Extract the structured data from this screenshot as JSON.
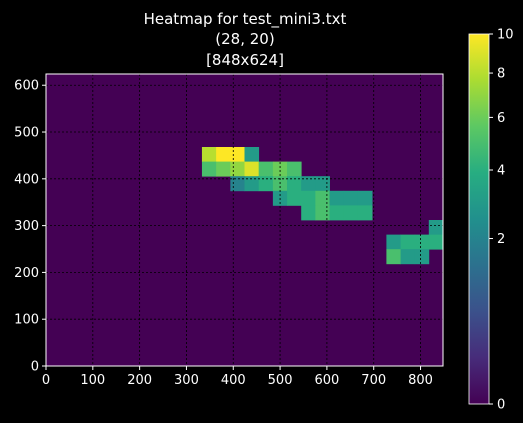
{
  "chart_data": {
    "type": "heatmap",
    "title_lines": [
      "Heatmap for test_mini3.txt",
      "(28, 20)",
      "[848x624]"
    ],
    "xlabel": "",
    "ylabel": "",
    "xlim": [
      0,
      848
    ],
    "ylim": [
      0,
      624
    ],
    "x_ticks": [
      0,
      100,
      200,
      300,
      400,
      500,
      600,
      700,
      800
    ],
    "y_ticks": [
      0,
      100,
      200,
      300,
      400,
      500,
      600
    ],
    "grid": true,
    "grid_x": [
      100,
      200,
      300,
      400,
      500,
      600,
      700,
      800
    ],
    "grid_y": [
      100,
      200,
      300,
      400,
      500,
      600
    ],
    "colorscale": "viridis",
    "colorbar": {
      "range": [
        0,
        10
      ],
      "scale": "sqrt",
      "ticks": [
        0,
        2,
        4,
        6,
        8,
        10
      ]
    },
    "grid_shape": {
      "cols": 28,
      "rows": 20
    },
    "cell_size": {
      "width": 30.2857,
      "height": 31.2
    },
    "nonzero_cells": [
      {
        "x0": 333.1,
        "y0": 436.8,
        "x1": 363.4,
        "y1": 468.0,
        "value": 8.0
      },
      {
        "x0": 363.4,
        "y0": 436.8,
        "x1": 393.7,
        "y1": 468.0,
        "value": 10.0
      },
      {
        "x0": 393.7,
        "y0": 436.8,
        "x1": 424.0,
        "y1": 468.0,
        "value": 10.0
      },
      {
        "x0": 424.0,
        "y0": 436.8,
        "x1": 454.3,
        "y1": 468.0,
        "value": 3.0
      },
      {
        "x0": 333.1,
        "y0": 405.6,
        "x1": 363.4,
        "y1": 436.8,
        "value": 5.0
      },
      {
        "x0": 363.4,
        "y0": 405.6,
        "x1": 393.7,
        "y1": 436.8,
        "value": 6.0
      },
      {
        "x0": 393.7,
        "y0": 405.6,
        "x1": 424.0,
        "y1": 436.8,
        "value": 7.0
      },
      {
        "x0": 424.0,
        "y0": 405.6,
        "x1": 454.3,
        "y1": 436.8,
        "value": 9.0
      },
      {
        "x0": 454.3,
        "y0": 405.6,
        "x1": 484.6,
        "y1": 436.8,
        "value": 5.0
      },
      {
        "x0": 484.6,
        "y0": 405.6,
        "x1": 514.9,
        "y1": 436.8,
        "value": 6.0
      },
      {
        "x0": 514.9,
        "y0": 405.6,
        "x1": 545.1,
        "y1": 436.8,
        "value": 5.0
      },
      {
        "x0": 393.7,
        "y0": 374.4,
        "x1": 424.0,
        "y1": 405.6,
        "value": 2.0
      },
      {
        "x0": 424.0,
        "y0": 374.4,
        "x1": 454.3,
        "y1": 405.6,
        "value": 3.0
      },
      {
        "x0": 454.3,
        "y0": 374.4,
        "x1": 484.6,
        "y1": 405.6,
        "value": 4.0
      },
      {
        "x0": 484.6,
        "y0": 374.4,
        "x1": 514.9,
        "y1": 405.6,
        "value": 5.0
      },
      {
        "x0": 514.9,
        "y0": 374.4,
        "x1": 545.1,
        "y1": 405.6,
        "value": 4.0
      },
      {
        "x0": 545.1,
        "y0": 374.4,
        "x1": 575.4,
        "y1": 405.6,
        "value": 3.0
      },
      {
        "x0": 575.4,
        "y0": 374.4,
        "x1": 605.7,
        "y1": 405.6,
        "value": 3.0
      },
      {
        "x0": 484.6,
        "y0": 343.2,
        "x1": 514.9,
        "y1": 374.4,
        "value": 3.0
      },
      {
        "x0": 514.9,
        "y0": 343.2,
        "x1": 545.1,
        "y1": 374.4,
        "value": 4.0
      },
      {
        "x0": 545.1,
        "y0": 343.2,
        "x1": 575.4,
        "y1": 374.4,
        "value": 4.0
      },
      {
        "x0": 575.4,
        "y0": 343.2,
        "x1": 605.7,
        "y1": 374.4,
        "value": 5.0
      },
      {
        "x0": 605.7,
        "y0": 343.2,
        "x1": 636.0,
        "y1": 374.4,
        "value": 3.0
      },
      {
        "x0": 636.0,
        "y0": 343.2,
        "x1": 666.3,
        "y1": 374.4,
        "value": 3.0
      },
      {
        "x0": 666.3,
        "y0": 343.2,
        "x1": 696.6,
        "y1": 374.4,
        "value": 3.0
      },
      {
        "x0": 545.1,
        "y0": 312.0,
        "x1": 575.4,
        "y1": 343.2,
        "value": 4.0
      },
      {
        "x0": 575.4,
        "y0": 312.0,
        "x1": 605.7,
        "y1": 343.2,
        "value": 5.0
      },
      {
        "x0": 605.7,
        "y0": 312.0,
        "x1": 636.0,
        "y1": 343.2,
        "value": 4.0
      },
      {
        "x0": 636.0,
        "y0": 312.0,
        "x1": 666.3,
        "y1": 343.2,
        "value": 4.0
      },
      {
        "x0": 666.3,
        "y0": 312.0,
        "x1": 696.6,
        "y1": 343.2,
        "value": 4.0
      },
      {
        "x0": 817.7,
        "y0": 280.8,
        "x1": 848.0,
        "y1": 312.0,
        "value": 3.0
      },
      {
        "x0": 727.1,
        "y0": 249.6,
        "x1": 757.4,
        "y1": 280.8,
        "value": 3.0
      },
      {
        "x0": 757.4,
        "y0": 249.6,
        "x1": 787.7,
        "y1": 280.8,
        "value": 4.0
      },
      {
        "x0": 787.7,
        "y0": 249.6,
        "x1": 817.7,
        "y1": 280.8,
        "value": 4.0
      },
      {
        "x0": 817.7,
        "y0": 249.6,
        "x1": 848.0,
        "y1": 280.8,
        "value": 4.0
      },
      {
        "x0": 727.1,
        "y0": 218.4,
        "x1": 757.4,
        "y1": 249.6,
        "value": 5.0
      },
      {
        "x0": 757.4,
        "y0": 218.4,
        "x1": 787.7,
        "y1": 249.6,
        "value": 3.0
      },
      {
        "x0": 787.7,
        "y0": 218.4,
        "x1": 817.7,
        "y1": 249.6,
        "value": 3.0
      }
    ]
  }
}
